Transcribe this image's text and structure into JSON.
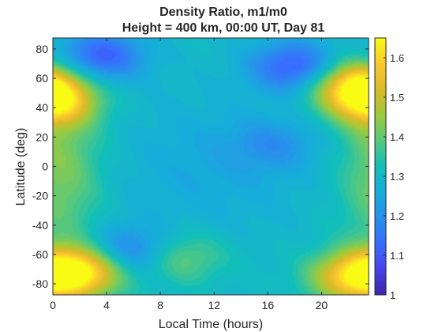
{
  "chart_data": {
    "type": "heatmap",
    "title": "Density Ratio, m1/m0",
    "subtitle": "Height = 400 km, 00:00 UT, Day 81",
    "xlabel": "Local Time (hours)",
    "ylabel": "Latitude (deg)",
    "xlim": [
      0,
      23.5
    ],
    "ylim": [
      -87.5,
      87.5
    ],
    "x_ticks": [
      0,
      4,
      8,
      12,
      16,
      20
    ],
    "x_tick_labels": [
      "0",
      "4",
      "8",
      "12",
      "16",
      "20"
    ],
    "y_ticks": [
      -80,
      -60,
      -40,
      -20,
      0,
      20,
      40,
      60,
      80
    ],
    "y_tick_labels": [
      "-80",
      "-60",
      "-40",
      "-20",
      "0",
      "20",
      "40",
      "60",
      "80"
    ],
    "colorbar": {
      "colormap": "parula",
      "range": [
        1.0,
        1.65
      ],
      "ticks": [
        1,
        1.1,
        1.2,
        1.3,
        1.4,
        1.5,
        1.6
      ],
      "tick_labels": [
        "1",
        "1.1",
        "1.2",
        "1.3",
        "1.4",
        "1.5",
        "1.6"
      ]
    },
    "grid": false,
    "features": [
      {
        "local_time": 2,
        "latitude": -72,
        "value": 1.64
      },
      {
        "local_time": 22.5,
        "latitude": -75,
        "value": 1.6
      },
      {
        "local_time": 22.5,
        "latitude": 55,
        "value": 1.58
      },
      {
        "local_time": 0,
        "latitude": 45,
        "value": 1.55
      },
      {
        "local_time": 3.5,
        "latitude": 75,
        "value": 1.1
      },
      {
        "local_time": 18,
        "latitude": 68,
        "value": 1.1
      },
      {
        "local_time": 5.8,
        "latitude": -58,
        "value": 1.15
      },
      {
        "local_time": 16.5,
        "latitude": 15,
        "value": 1.22
      },
      {
        "local_time": 9.5,
        "latitude": -62,
        "value": 1.42
      }
    ]
  }
}
